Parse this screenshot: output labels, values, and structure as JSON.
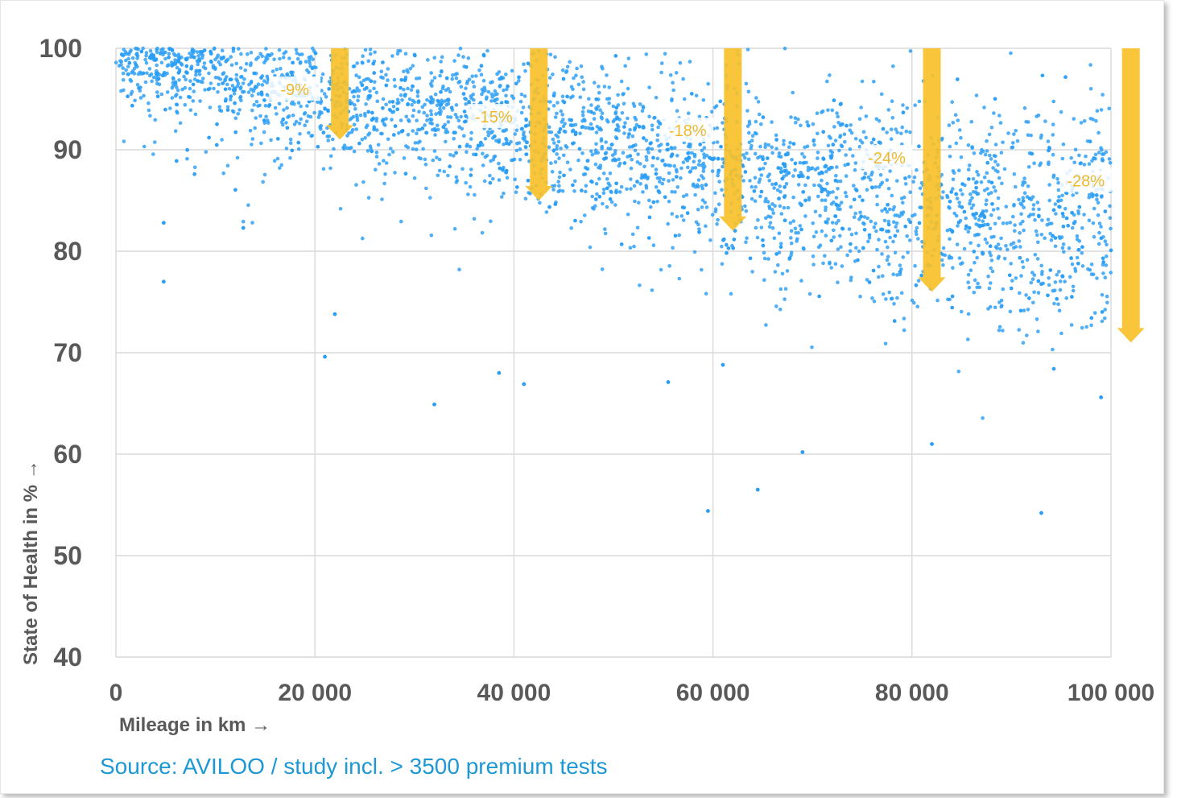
{
  "source_text": "Source: AVILOO / study incl. > 3500 premium tests",
  "colors": {
    "points": "#2a9df4",
    "arrows": "#f7c02a",
    "grid": "#d9d9d9",
    "text": "#595959",
    "source": "#1e98d4"
  },
  "chart_data": {
    "type": "scatter",
    "title": "",
    "xlabel": "Mileage in km →",
    "ylabel": "State of Health in % →",
    "xlim": [
      0,
      100000
    ],
    "ylim": [
      40,
      100
    ],
    "x_ticks": [
      0,
      20000,
      40000,
      60000,
      80000,
      100000
    ],
    "x_tick_labels": [
      "0",
      "20 000",
      "40 000",
      "60 000",
      "80 000",
      "100 000"
    ],
    "y_ticks": [
      40,
      50,
      60,
      70,
      80,
      90,
      100
    ],
    "y_tick_labels": [
      "40",
      "50",
      "60",
      "70",
      "80",
      "90",
      "100"
    ],
    "grid": true,
    "legend": "none",
    "point_count_note": "> 3500 premium tests",
    "series": [
      {
        "trend_mean_soh": [
          {
            "x": 0,
            "y": 98.5
          },
          {
            "x": 20000,
            "y": 95.5
          },
          {
            "x": 40000,
            "y": 92.5
          },
          {
            "x": 60000,
            "y": 88.0
          },
          {
            "x": 80000,
            "y": 85.0
          },
          {
            "x": 100000,
            "y": 82.5
          }
        ],
        "sample_outliers": [
          {
            "x": 4800,
            "y": 82.8
          },
          {
            "x": 4800,
            "y": 77.0
          },
          {
            "x": 12800,
            "y": 82.3
          },
          {
            "x": 21000,
            "y": 69.6
          },
          {
            "x": 22000,
            "y": 73.8
          },
          {
            "x": 32000,
            "y": 64.9
          },
          {
            "x": 38500,
            "y": 68.0
          },
          {
            "x": 41000,
            "y": 66.9
          },
          {
            "x": 55500,
            "y": 67.1
          },
          {
            "x": 59500,
            "y": 54.4
          },
          {
            "x": 61000,
            "y": 68.8
          },
          {
            "x": 64500,
            "y": 56.5
          },
          {
            "x": 69000,
            "y": 60.2
          },
          {
            "x": 82000,
            "y": 61.0
          },
          {
            "x": 93000,
            "y": 54.2
          },
          {
            "x": 99000,
            "y": 65.6
          }
        ]
      }
    ],
    "annotations": [
      {
        "label": "-9%",
        "x": 22500,
        "from": 100,
        "to": 91
      },
      {
        "label": "-15%",
        "x": 42500,
        "from": 100,
        "to": 85
      },
      {
        "label": "-18%",
        "x": 62000,
        "from": 100,
        "to": 82
      },
      {
        "label": "-24%",
        "x": 82000,
        "from": 100,
        "to": 76
      },
      {
        "label": "-28%",
        "x": 102000,
        "from": 100,
        "to": 71
      }
    ]
  }
}
